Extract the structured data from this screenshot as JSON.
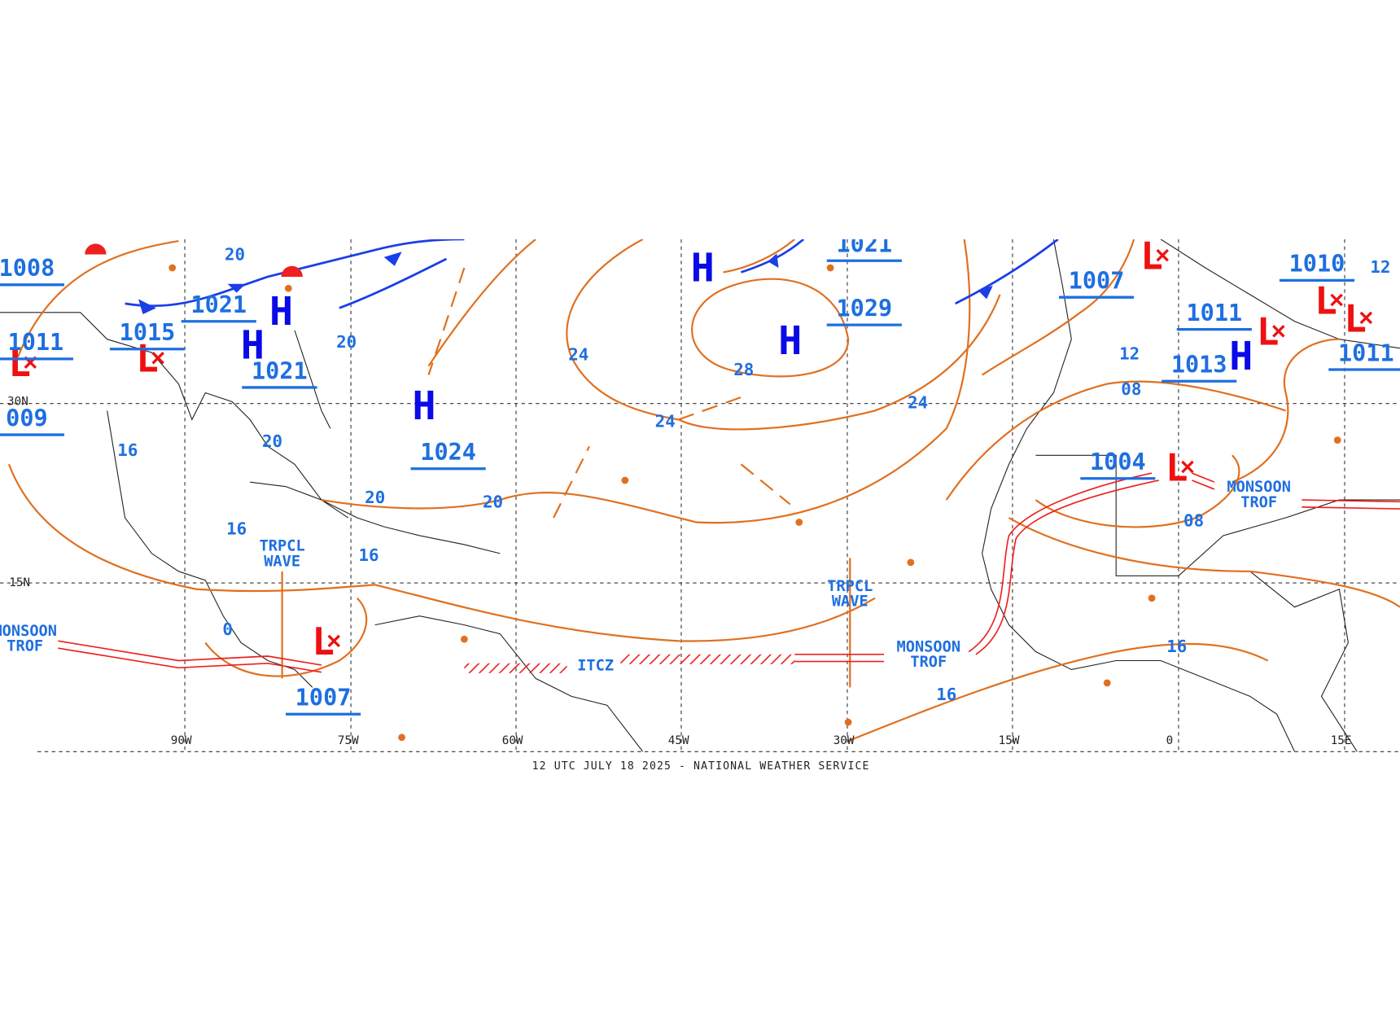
{
  "caption": "12 UTC JULY 18 2025 - NATIONAL WEATHER SERVICE",
  "longitude_labels": [
    "90W",
    "75W",
    "60W",
    "45W",
    "30W",
    "15W",
    "0",
    "15E"
  ],
  "latitude_labels": [
    "30N",
    "15N"
  ],
  "highs": [
    "H",
    "H",
    "H",
    "H",
    "H",
    "H"
  ],
  "lows": [
    "L",
    "L",
    "L",
    "L",
    "L",
    "L",
    "L",
    "L"
  ],
  "central_pressures": [
    "1008",
    "1011",
    "009",
    "1015",
    "1021",
    "1021",
    "1024",
    "1007",
    "1021",
    "1029",
    "1007",
    "1011",
    "1010",
    "1013",
    "1011",
    "1004"
  ],
  "isobar_labels": [
    "20",
    "20",
    "20",
    "20",
    "20",
    "16",
    "16",
    "16",
    "24",
    "24",
    "28",
    "24",
    "12",
    "08",
    "08",
    "16",
    "16",
    "0",
    "12"
  ],
  "features": [
    {
      "lines": [
        "TRPCL",
        "WAVE"
      ]
    },
    {
      "lines": [
        "TRPCL",
        "WAVE"
      ]
    },
    {
      "lines": [
        "MONSOON",
        "TROF"
      ]
    },
    {
      "lines": [
        "MONSOON",
        "TROF"
      ]
    },
    {
      "lines": [
        "MONSOON",
        "TROF"
      ]
    },
    {
      "lines": [
        "ITCZ"
      ]
    }
  ]
}
